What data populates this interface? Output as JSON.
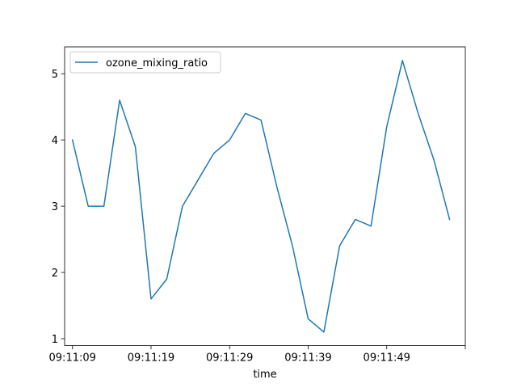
{
  "chart_data": {
    "type": "line",
    "xlabel": "time",
    "ylabel": "",
    "x": [
      "09:11:09",
      "09:11:11",
      "09:11:13",
      "09:11:15",
      "09:11:17",
      "09:11:19",
      "09:11:21",
      "09:11:23",
      "09:11:25",
      "09:11:27",
      "09:11:29",
      "09:11:31",
      "09:11:33",
      "09:11:35",
      "09:11:37",
      "09:11:39",
      "09:11:41",
      "09:11:43",
      "09:11:45",
      "09:11:47",
      "09:11:49",
      "09:11:51",
      "09:11:53",
      "09:11:55",
      "09:11:57"
    ],
    "x_ticks": [
      "09:11:09",
      "09:11:19",
      "09:11:29",
      "09:11:39",
      "09:11:49",
      ""
    ],
    "x_tick_positions": [
      "09:11:09",
      "09:11:19",
      "09:11:29",
      "09:11:39",
      "09:11:49",
      "09:11:59"
    ],
    "xlim": [
      "09:11:08",
      "09:11:59"
    ],
    "ylim": [
      0.895,
      5.405
    ],
    "y_ticks": [
      1,
      2,
      3,
      4,
      5
    ],
    "grid": false,
    "legend": "upper left",
    "series": [
      {
        "name": "ozone_mixing_ratio",
        "color": "#1f77b4",
        "values": [
          4.0,
          3.0,
          3.0,
          4.6,
          3.9,
          1.6,
          1.9,
          3.0,
          3.4,
          3.8,
          4.0,
          4.4,
          4.3,
          3.3,
          2.4,
          1.3,
          1.1,
          2.4,
          2.8,
          2.7,
          4.2,
          5.2,
          4.4,
          3.7,
          2.8
        ]
      }
    ]
  }
}
